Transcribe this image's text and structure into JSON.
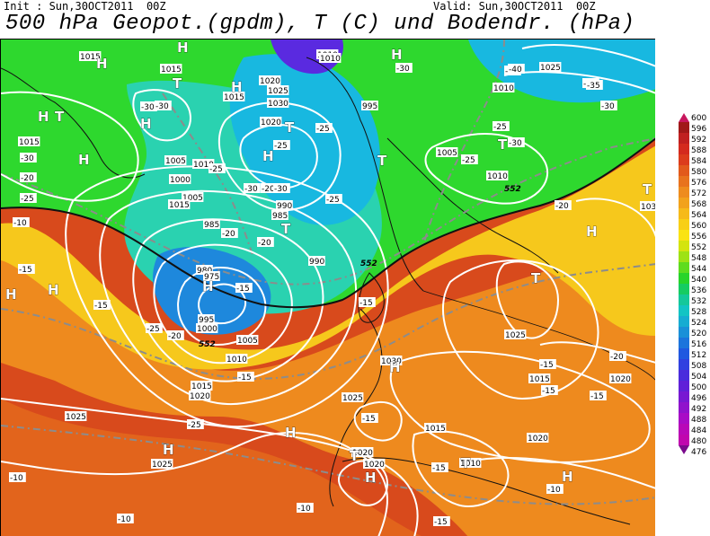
{
  "header": {
    "init": "Init : Sun,30OCT2011  00Z",
    "valid": "Valid: Sun,30OCT2011  00Z",
    "title": "500 hPa Geopot.(gpdm), T (C) und Bodendr. (hPa)"
  },
  "legend": {
    "values": [
      "600",
      "596",
      "592",
      "588",
      "584",
      "580",
      "576",
      "572",
      "568",
      "564",
      "560",
      "556",
      "552",
      "548",
      "544",
      "540",
      "536",
      "532",
      "528",
      "524",
      "520",
      "516",
      "512",
      "508",
      "504",
      "500",
      "496",
      "492",
      "488",
      "484",
      "480",
      "476"
    ],
    "colors": [
      "#c8175e",
      "#a01818",
      "#c02020",
      "#d42a1e",
      "#dc3c1c",
      "#e25a1c",
      "#e8731e",
      "#ee8c1e",
      "#f2a21c",
      "#f6ba1a",
      "#f8cf16",
      "#fae312",
      "#d4e40e",
      "#9ee214",
      "#5edc1e",
      "#28d42a",
      "#16cc62",
      "#14c89a",
      "#12c4c4",
      "#16acd2",
      "#1a90d8",
      "#1c74dc",
      "#2058e0",
      "#3040e0",
      "#4a2cdc",
      "#6020d8",
      "#7818d2",
      "#9012cc",
      "#a80cc6",
      "#b808b8",
      "#c006ae",
      "#7a0a8c"
    ]
  },
  "map": {
    "colors": {
      "green": "#2ed82e",
      "cyan": "#2ad2b0",
      "light_blue": "#18b8e0",
      "blue": "#1e88dc",
      "violet": "#5a2ae0",
      "yellow": "#f6c81c",
      "orange": "#ee8a1e",
      "red_orange": "#e2641c",
      "red": "#d84a1c",
      "coast": "#111111",
      "isobar": "#ffffff",
      "isotherm": "#8c8c8c"
    },
    "pressure_centers": [
      {
        "label": "H"
      },
      {
        "label": "H"
      },
      {
        "label": "T"
      },
      {
        "label": "H"
      },
      {
        "label": "H"
      },
      {
        "label": "T"
      },
      {
        "label": "H"
      },
      {
        "label": "H"
      },
      {
        "label": "T"
      },
      {
        "label": "H"
      },
      {
        "label": "T"
      },
      {
        "label": "T"
      },
      {
        "label": "H"
      },
      {
        "label": "T"
      },
      {
        "label": "H"
      },
      {
        "label": "H"
      },
      {
        "label": "H"
      },
      {
        "label": "H"
      },
      {
        "label": "H"
      },
      {
        "label": "H"
      },
      {
        "label": "T"
      },
      {
        "label": "H"
      },
      {
        "label": "T"
      },
      {
        "label": "H"
      },
      {
        "label": "T"
      },
      {
        "label": "H"
      },
      {
        "label": "T"
      },
      {
        "label": "H"
      }
    ],
    "isobar_labels": [
      "1015",
      "1015",
      "1010",
      "1015",
      "1020",
      "1025",
      "1030",
      "1010",
      "1005",
      "995",
      "1000",
      "1005",
      "1010",
      "1015",
      "1020",
      "1010",
      "1005",
      "990",
      "985",
      "985",
      "980",
      "975",
      "990",
      "995",
      "1000",
      "1005",
      "1010",
      "1015",
      "1020",
      "1025",
      "1025",
      "1025",
      "1030",
      "1025",
      "1015",
      "1020",
      "1015",
      "1020",
      "1010",
      "1020",
      "1025",
      "1030",
      "1015",
      "1020",
      "1010"
    ],
    "isotherm_labels": [
      "-30",
      "-40",
      "-30",
      "-35",
      "-25",
      "-30",
      "-30",
      "-25",
      "-20",
      "-25",
      "-30",
      "-30",
      "-20",
      "-25",
      "-25",
      "-20",
      "-15",
      "-15",
      "-25",
      "-20",
      "-15",
      "-10",
      "-15",
      "-15",
      "-15",
      "-15",
      "-25",
      "-20",
      "-20",
      "-15",
      "-15",
      "-15",
      "-10",
      "-10",
      "-10",
      "-15",
      "-10",
      "-20",
      "-30",
      "-35",
      "-40",
      "-30",
      "-25",
      "-25"
    ],
    "contour_labels": [
      "552",
      "552",
      "552"
    ]
  }
}
